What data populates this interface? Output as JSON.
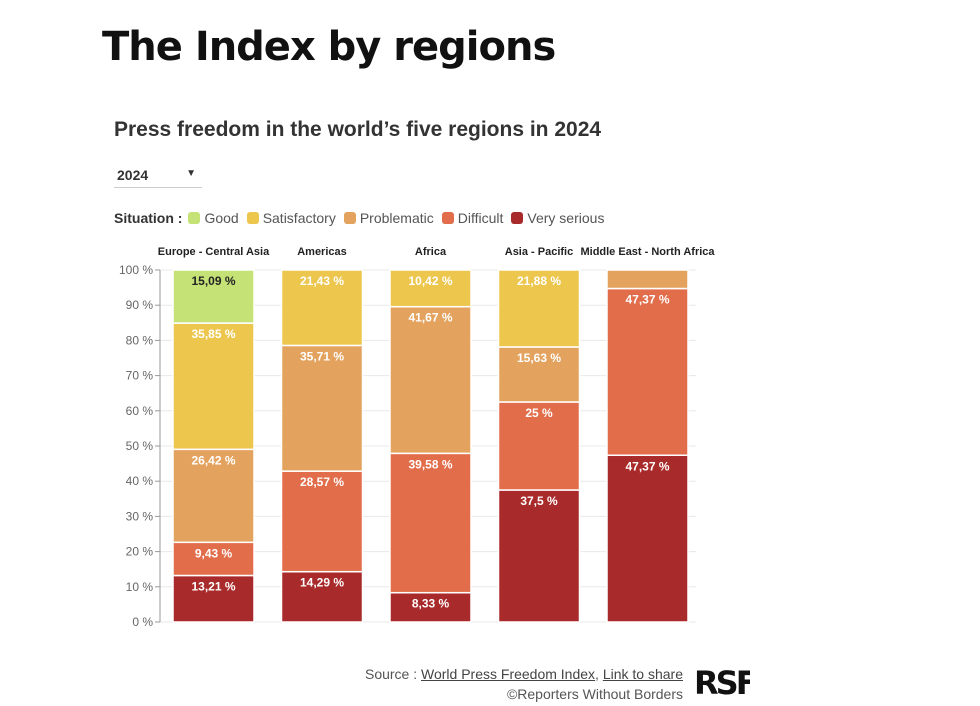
{
  "page": {
    "heading": "The Index by regions",
    "year_select": {
      "value": "2024"
    },
    "source_prefix": "Source : ",
    "source_link": "World Press Freedom Index",
    "separator": ", ",
    "share_link": "Link to share",
    "copyright": "©Reporters Without Borders",
    "logo_text": "RSF"
  },
  "chart_data": {
    "type": "bar",
    "stacked": true,
    "title": "Press freedom in the world’s five regions in 2024",
    "legend_title": "Situation :",
    "categories": [
      "Europe - Central Asia",
      "Americas",
      "Africa",
      "Asia - Pacific",
      "Middle East - North Africa"
    ],
    "ylim": [
      0,
      100
    ],
    "yticks": [
      "0 %",
      "10 %",
      "20 %",
      "30 %",
      "40 %",
      "50 %",
      "60 %",
      "70 %",
      "80 %",
      "90 %",
      "100 %"
    ],
    "series": [
      {
        "name": "Very serious",
        "color": "#a92a2a",
        "values": [
          13.21,
          14.29,
          8.33,
          37.5,
          47.37
        ],
        "labels": [
          "13,21 %",
          "14,29 %",
          "8,33 %",
          "37,5 %",
          "47,37 %"
        ]
      },
      {
        "name": "Difficult",
        "color": "#e26d4a",
        "values": [
          9.43,
          28.57,
          39.58,
          25,
          47.37
        ],
        "labels": [
          "9,43 %",
          "28,57 %",
          "39,58 %",
          "25 %",
          "47,37 %"
        ]
      },
      {
        "name": "Problematic",
        "color": "#e3a35f",
        "values": [
          26.42,
          35.71,
          41.67,
          15.63,
          5.26
        ],
        "labels": [
          "26,42 %",
          "35,71 %",
          "41,67 %",
          "15,63 %",
          ""
        ]
      },
      {
        "name": "Satisfactory",
        "color": "#edc64e",
        "values": [
          35.85,
          21.43,
          10.42,
          21.88,
          0
        ],
        "labels": [
          "35,85 %",
          "21,43 %",
          "10,42 %",
          "21,88 %",
          ""
        ]
      },
      {
        "name": "Good",
        "color": "#c5e277",
        "values": [
          15.09,
          0,
          0,
          0,
          0
        ],
        "labels": [
          "15,09 %",
          "",
          "",
          "",
          ""
        ]
      }
    ]
  }
}
